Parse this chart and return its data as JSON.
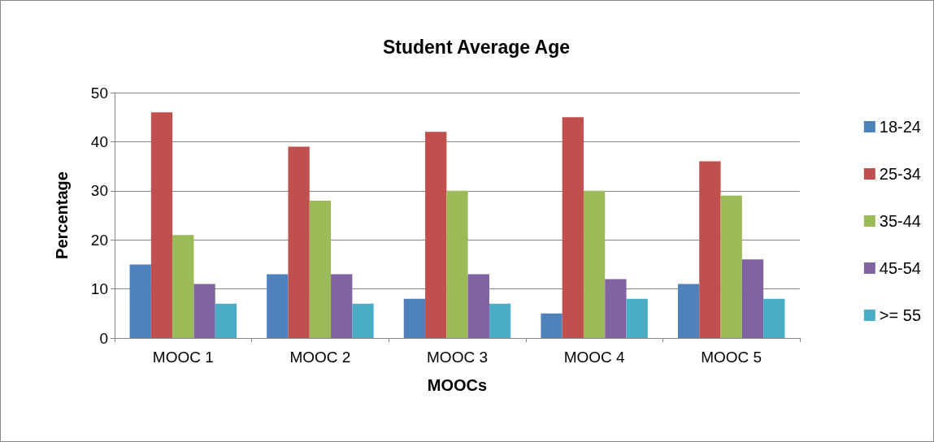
{
  "chart_data": {
    "type": "bar",
    "title": "Student Average Age",
    "xlabel": "MOOCs",
    "ylabel": "Percentage",
    "categories": [
      "MOOC 1",
      "MOOC 2",
      "MOOC 3",
      "MOOC 4",
      "MOOC 5"
    ],
    "series": [
      {
        "name": "18-24",
        "color": "#4f81bd",
        "values": [
          15,
          13,
          8,
          5,
          11
        ]
      },
      {
        "name": "25-34",
        "color": "#c0504d",
        "values": [
          46,
          39,
          42,
          45,
          36
        ]
      },
      {
        "name": "35-44",
        "color": "#9bbb59",
        "values": [
          21,
          28,
          30,
          30,
          29
        ]
      },
      {
        "name": "45-54",
        "color": "#8064a2",
        "values": [
          11,
          13,
          13,
          12,
          16
        ]
      },
      {
        "name": ">= 55",
        "color": "#4bacc6",
        "values": [
          7,
          7,
          7,
          8,
          8
        ]
      }
    ],
    "ylim": [
      0,
      50
    ],
    "yticks": [
      0,
      10,
      20,
      30,
      40,
      50
    ],
    "grid": "y",
    "legend": "right"
  }
}
